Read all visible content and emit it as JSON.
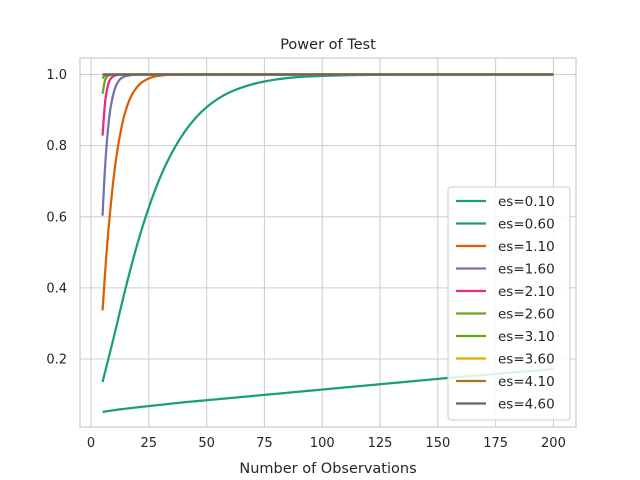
{
  "chart_data": {
    "type": "line",
    "title": "Power of Test",
    "xlabel": "Number of Observations",
    "ylabel": "",
    "xlim": [
      -4.75,
      209.75
    ],
    "ylim": [
      0.0087,
      1.0465
    ],
    "xticks": [
      0,
      25,
      50,
      75,
      100,
      125,
      150,
      175,
      200
    ],
    "yticks": [
      0.2,
      0.4,
      0.6,
      0.8,
      1.0
    ],
    "ytick_labels": [
      "0.2",
      "0.4",
      "0.6",
      "0.8",
      "1.0"
    ],
    "grid": true,
    "legend_position": "lower-right",
    "series": [
      {
        "name": "es=0.10",
        "color": "#1b9e77",
        "x": [
          5,
          10,
          20,
          30,
          40,
          50,
          60,
          70,
          80,
          90,
          100,
          110,
          120,
          130,
          140,
          150,
          160,
          170,
          180,
          190,
          200
        ],
        "y": [
          0.051,
          0.056,
          0.064,
          0.071,
          0.078,
          0.084,
          0.09,
          0.096,
          0.102,
          0.108,
          0.114,
          0.12,
          0.126,
          0.132,
          0.138,
          0.144,
          0.15,
          0.155,
          0.161,
          0.166,
          0.172
        ]
      },
      {
        "name": "es=0.60",
        "color": "#1b9e77",
        "x": [
          5,
          10,
          15,
          20,
          25,
          30,
          35,
          40,
          45,
          50,
          55,
          60,
          70,
          80,
          90,
          100,
          110,
          120,
          130,
          150,
          175,
          200
        ],
        "y": [
          0.135,
          0.265,
          0.4,
          0.522,
          0.626,
          0.712,
          0.78,
          0.834,
          0.876,
          0.908,
          0.932,
          0.95,
          0.973,
          0.986,
          0.993,
          0.996,
          0.998,
          0.999,
          1.0,
          1.0,
          1.0,
          1.0
        ]
      },
      {
        "name": "es=1.10",
        "color": "#d95f02",
        "x": [
          5,
          7,
          10,
          13,
          16,
          20,
          25,
          30,
          40,
          50,
          75,
          100,
          150,
          200
        ],
        "y": [
          0.337,
          0.52,
          0.72,
          0.845,
          0.918,
          0.965,
          0.989,
          0.997,
          1.0,
          1.0,
          1.0,
          1.0,
          1.0,
          1.0
        ],
        "smooth": true
      },
      {
        "name": "es=1.60",
        "color": "#7570b3",
        "x": [
          5,
          6,
          7,
          8,
          10,
          12,
          14,
          17,
          20,
          25,
          40,
          100,
          200
        ],
        "y": [
          0.603,
          0.73,
          0.82,
          0.885,
          0.953,
          0.982,
          0.993,
          0.998,
          1.0,
          1.0,
          1.0,
          1.0,
          1.0
        ],
        "smooth": true
      },
      {
        "name": "es=2.10",
        "color": "#e7298a",
        "x": [
          5,
          6,
          7,
          8,
          10,
          12,
          15,
          200
        ],
        "y": [
          0.828,
          0.915,
          0.96,
          0.982,
          0.996,
          0.999,
          1.0,
          1.0
        ]
      },
      {
        "name": "es=2.60",
        "color": "#66a61e",
        "x": [
          5,
          6,
          7,
          8,
          10,
          200
        ],
        "y": [
          0.946,
          0.982,
          0.994,
          0.998,
          1.0,
          1.0
        ]
      },
      {
        "name": "es=3.10",
        "color": "#66a61e",
        "x": [
          5,
          6,
          7,
          8,
          200
        ],
        "y": [
          0.989,
          0.997,
          0.999,
          1.0,
          1.0
        ]
      },
      {
        "name": "es=3.60",
        "color": "#e6ab02",
        "x": [
          5,
          6,
          7,
          200
        ],
        "y": [
          0.998,
          1.0,
          1.0,
          1.0
        ]
      },
      {
        "name": "es=4.10",
        "color": "#a6761d",
        "x": [
          5,
          6,
          200
        ],
        "y": [
          1.0,
          1.0,
          1.0
        ]
      },
      {
        "name": "es=4.60",
        "color": "#666666",
        "x": [
          5,
          6,
          200
        ],
        "y": [
          1.0,
          1.0,
          1.0
        ]
      }
    ]
  }
}
